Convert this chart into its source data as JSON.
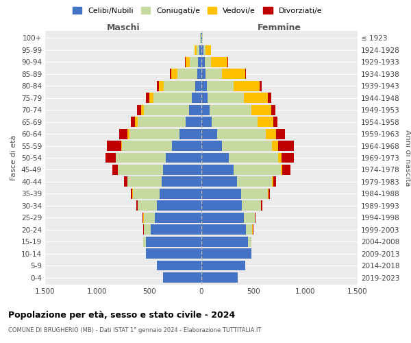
{
  "age_groups": [
    "0-4",
    "5-9",
    "10-14",
    "15-19",
    "20-24",
    "25-29",
    "30-34",
    "35-39",
    "40-44",
    "45-49",
    "50-54",
    "55-59",
    "60-64",
    "65-69",
    "70-74",
    "75-79",
    "80-84",
    "85-89",
    "90-94",
    "95-99",
    "100+"
  ],
  "birth_years": [
    "2019-2023",
    "2014-2018",
    "2009-2013",
    "2004-2008",
    "1999-2003",
    "1994-1998",
    "1989-1993",
    "1984-1988",
    "1979-1983",
    "1974-1978",
    "1969-1973",
    "1964-1968",
    "1959-1963",
    "1954-1958",
    "1949-1953",
    "1944-1948",
    "1939-1943",
    "1934-1938",
    "1929-1933",
    "1924-1928",
    "≤ 1923"
  ],
  "maschi": {
    "celibi": [
      370,
      430,
      530,
      530,
      490,
      450,
      430,
      400,
      380,
      370,
      340,
      280,
      210,
      150,
      120,
      90,
      60,
      40,
      30,
      20,
      5
    ],
    "coniugati": [
      0,
      0,
      0,
      30,
      60,
      100,
      180,
      260,
      330,
      430,
      480,
      480,
      480,
      460,
      430,
      370,
      300,
      190,
      80,
      25,
      5
    ],
    "vedovi": [
      0,
      0,
      0,
      0,
      5,
      10,
      2,
      2,
      3,
      5,
      5,
      10,
      20,
      30,
      30,
      40,
      50,
      60,
      40,
      20,
      2
    ],
    "divorziati": [
      0,
      0,
      0,
      0,
      3,
      5,
      10,
      15,
      30,
      50,
      95,
      140,
      80,
      40,
      40,
      30,
      15,
      10,
      5,
      0,
      0
    ]
  },
  "femmine": {
    "nubili": [
      350,
      420,
      480,
      450,
      430,
      410,
      390,
      380,
      340,
      310,
      260,
      200,
      150,
      100,
      80,
      60,
      50,
      40,
      30,
      20,
      5
    ],
    "coniugate": [
      0,
      0,
      0,
      30,
      60,
      100,
      180,
      260,
      340,
      450,
      480,
      480,
      470,
      440,
      400,
      350,
      260,
      160,
      60,
      20,
      5
    ],
    "vedove": [
      0,
      0,
      0,
      0,
      3,
      5,
      3,
      5,
      8,
      15,
      30,
      60,
      100,
      150,
      190,
      230,
      250,
      220,
      160,
      50,
      5
    ],
    "divorziate": [
      0,
      0,
      0,
      0,
      5,
      5,
      10,
      15,
      30,
      80,
      120,
      150,
      80,
      40,
      40,
      30,
      20,
      10,
      5,
      0,
      0
    ]
  },
  "colors": {
    "celibi": "#4472c4",
    "coniugati": "#c5d9a0",
    "vedovi": "#ffc000",
    "divorziati": "#c00000"
  },
  "legend_labels": [
    "Celibi/Nubili",
    "Coniugati/e",
    "Vedovi/e",
    "Divorziati/e"
  ],
  "title": "Popolazione per età, sesso e stato civile - 2024",
  "subtitle": "COMUNE DI BRUGHERIO (MB) - Dati ISTAT 1° gennaio 2024 - Elaborazione TUTTITALIA.IT",
  "xlabel_left": "Maschi",
  "xlabel_right": "Femmine",
  "ylabel_left": "Fasce di età",
  "ylabel_right": "Anni di nascita",
  "xlim": 1500,
  "xticks": [
    -1500,
    -1000,
    -500,
    0,
    500,
    1000,
    1500
  ],
  "xticklabels": [
    "1.500",
    "1.000",
    "500",
    "0",
    "500",
    "1.000",
    "1.500"
  ],
  "bg_color": "#ffffff",
  "plot_bg_color": "#ebebeb"
}
